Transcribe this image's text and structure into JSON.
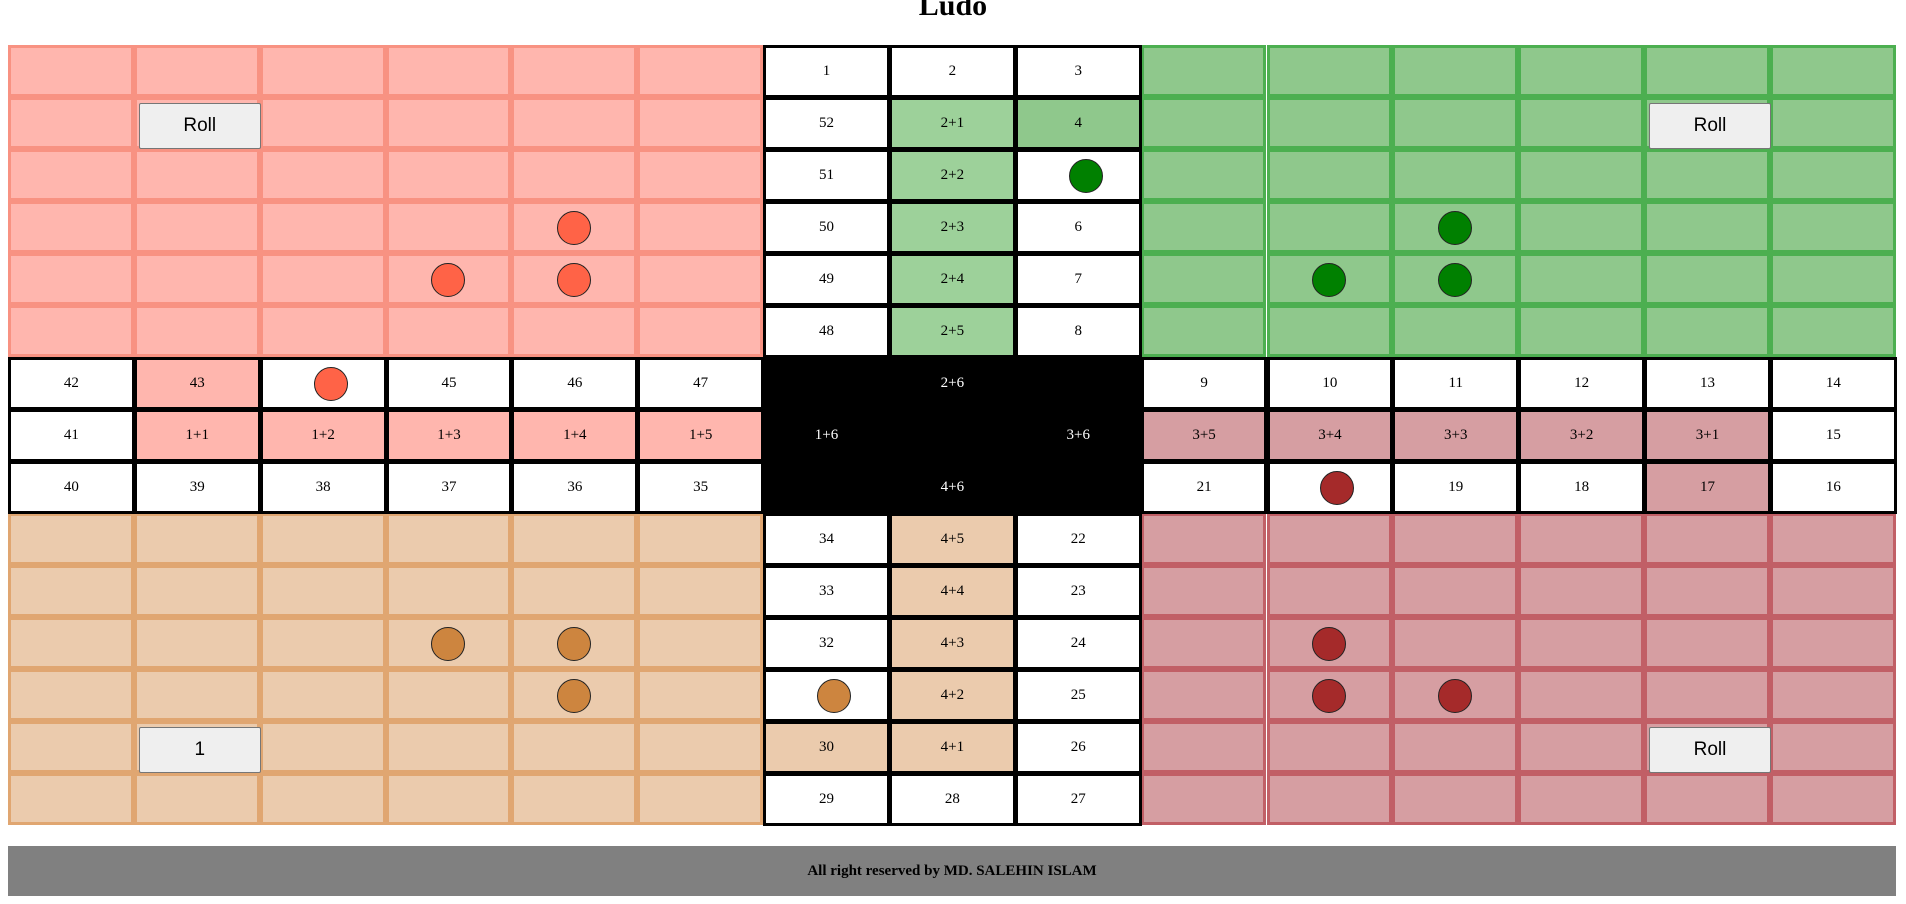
{
  "title": "Ludo",
  "footer": "All right reserved by MD. SALEHIN ISLAM",
  "colors": {
    "red_light": "#ffb6ae",
    "red_border": "#f89282",
    "red_token": "#ff6347",
    "green_light": "#8fc88c",
    "green_border": "#4caf50",
    "green_track": "#9dd19a",
    "green_token": "#008000",
    "maroon_light": "#d69ea2",
    "maroon_border": "#c15f66",
    "maroon_token": "#a52a2a",
    "tan_light": "#ebcbad",
    "tan_border": "#e0a671",
    "tan_token": "#cd853f",
    "center": "#000000",
    "footer_bg": "#808080"
  },
  "players": {
    "red": {
      "button_label": "Roll"
    },
    "green": {
      "button_label": "Roll"
    },
    "maroon": {
      "button_label": "Roll"
    },
    "tan": {
      "button_label": "1"
    }
  },
  "track": {
    "top": [
      [
        "1",
        "2",
        "3"
      ],
      [
        "52",
        "2+1",
        "4"
      ],
      [
        "51",
        "2+2",
        "5"
      ],
      [
        "50",
        "2+3",
        "6"
      ],
      [
        "49",
        "2+4",
        "7"
      ],
      [
        "48",
        "2+5",
        "8"
      ]
    ],
    "left": [
      [
        "42",
        "43",
        "44",
        "45",
        "46",
        "47"
      ],
      [
        "41",
        "1+1",
        "1+2",
        "1+3",
        "1+4",
        "1+5"
      ],
      [
        "40",
        "39",
        "38",
        "37",
        "36",
        "35"
      ]
    ],
    "right": [
      [
        "9",
        "10",
        "11",
        "12",
        "13",
        "14"
      ],
      [
        "3+5",
        "3+4",
        "3+3",
        "3+2",
        "3+1",
        "15"
      ],
      [
        "21",
        "20",
        "19",
        "18",
        "17",
        "16"
      ]
    ],
    "bottom": [
      [
        "34",
        "4+5",
        "22"
      ],
      [
        "33",
        "4+4",
        "23"
      ],
      [
        "32",
        "4+3",
        "24"
      ],
      [
        "31",
        "4+2",
        "25"
      ],
      [
        "30",
        "4+1",
        "26"
      ],
      [
        "29",
        "28",
        "27"
      ]
    ]
  },
  "center": {
    "top": "2+6",
    "left": "1+6",
    "right": "3+6",
    "bottom": "4+6"
  },
  "tokens": [
    {
      "player": "red",
      "at": "home",
      "row": 3,
      "col": 4
    },
    {
      "player": "red",
      "at": "home",
      "row": 4,
      "col": 3
    },
    {
      "player": "red",
      "at": "home",
      "row": 4,
      "col": 4
    },
    {
      "player": "red",
      "at": "square",
      "square": "44"
    },
    {
      "player": "green",
      "at": "square",
      "square": "5"
    },
    {
      "player": "green",
      "at": "home",
      "row": 3,
      "col": 11
    },
    {
      "player": "green",
      "at": "home",
      "row": 4,
      "col": 10
    },
    {
      "player": "green",
      "at": "home",
      "row": 4,
      "col": 11
    },
    {
      "player": "maroon",
      "at": "square",
      "square": "20"
    },
    {
      "player": "maroon",
      "at": "home",
      "row": 11,
      "col": 10
    },
    {
      "player": "maroon",
      "at": "home",
      "row": 12,
      "col": 10
    },
    {
      "player": "maroon",
      "at": "home",
      "row": 12,
      "col": 11
    },
    {
      "player": "tan",
      "at": "home",
      "row": 11,
      "col": 3
    },
    {
      "player": "tan",
      "at": "home",
      "row": 11,
      "col": 4
    },
    {
      "player": "tan",
      "at": "home",
      "row": 12,
      "col": 4
    },
    {
      "player": "tan",
      "at": "square",
      "square": "31"
    }
  ]
}
